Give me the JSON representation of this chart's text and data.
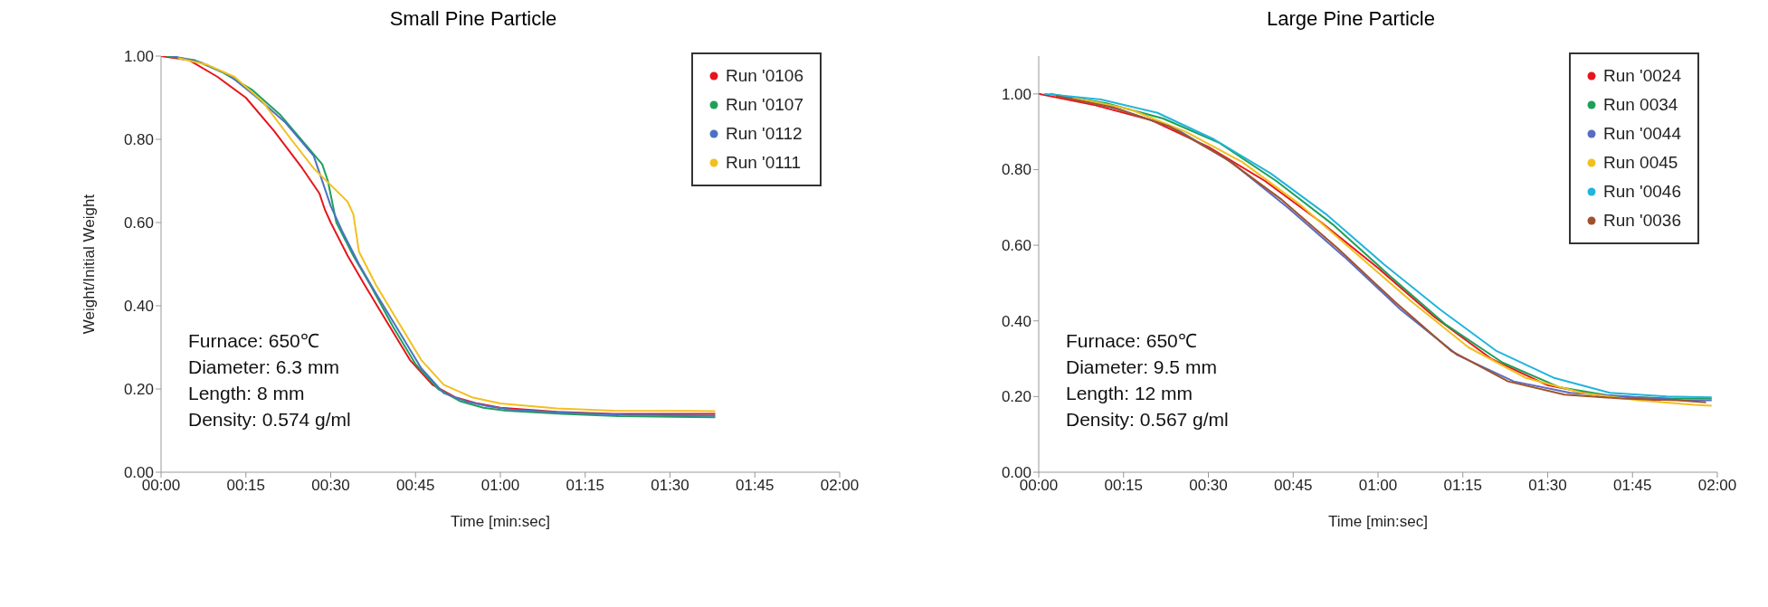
{
  "chart_data": [
    {
      "type": "line",
      "title": "Small Pine Particle",
      "xlabel": "Time [min:sec]",
      "ylabel": "Weight/Initial Weight",
      "legend": "top right",
      "xlim": [
        0,
        120
      ],
      "xticks": [
        {
          "value": 0,
          "label": "00:00"
        },
        {
          "value": 15,
          "label": "00:15"
        },
        {
          "value": 30,
          "label": "00:30"
        },
        {
          "value": 45,
          "label": "00:45"
        },
        {
          "value": 60,
          "label": "01:00"
        },
        {
          "value": 75,
          "label": "01:15"
        },
        {
          "value": 90,
          "label": "01:30"
        },
        {
          "value": 105,
          "label": "01:45"
        },
        {
          "value": 120,
          "label": "02:00"
        }
      ],
      "ylim": [
        0,
        1
      ],
      "yticks": [
        {
          "value": 0,
          "label": "0.00"
        },
        {
          "value": 0.2,
          "label": "0.20"
        },
        {
          "value": 0.4,
          "label": "0.40"
        },
        {
          "value": 0.6,
          "label": "0.60"
        },
        {
          "value": 0.8,
          "label": "0.80"
        },
        {
          "value": 1,
          "label": "1.00"
        }
      ],
      "series": [
        {
          "name": "Run '0106",
          "color": "#e8141c",
          "x": [
            0,
            5,
            10,
            15,
            20,
            25,
            28,
            29,
            30,
            33,
            36,
            40,
            44,
            48,
            52,
            56,
            60,
            70,
            80,
            98
          ],
          "values": [
            1,
            0.99,
            0.95,
            0.9,
            0.82,
            0.73,
            0.67,
            0.63,
            0.6,
            0.52,
            0.45,
            0.36,
            0.27,
            0.21,
            0.18,
            0.165,
            0.155,
            0.145,
            0.14,
            0.14
          ]
        },
        {
          "name": "Run '0107",
          "color": "#1fa05a",
          "x": [
            1,
            6,
            11,
            16,
            21,
            26,
            28.5,
            29.5,
            31,
            34,
            37,
            41,
            45,
            49,
            53,
            57,
            61,
            71,
            81,
            98
          ],
          "values": [
            1,
            0.99,
            0.96,
            0.92,
            0.86,
            0.78,
            0.74,
            0.7,
            0.6,
            0.52,
            0.45,
            0.35,
            0.26,
            0.2,
            0.17,
            0.155,
            0.148,
            0.14,
            0.135,
            0.132
          ]
        },
        {
          "name": "Run '0112",
          "color": "#4a72c4",
          "x": [
            2,
            7,
            12,
            17,
            22,
            27,
            30,
            32,
            35,
            38,
            42,
            46,
            50,
            54,
            58,
            62,
            72,
            82,
            98
          ],
          "values": [
            1,
            0.985,
            0.955,
            0.9,
            0.84,
            0.76,
            0.64,
            0.58,
            0.5,
            0.43,
            0.34,
            0.25,
            0.19,
            0.17,
            0.158,
            0.15,
            0.143,
            0.138,
            0.136
          ]
        },
        {
          "name": "Run '0111",
          "color": "#f2c01e",
          "x": [
            3,
            8,
            13,
            18,
            23,
            27,
            30,
            33,
            34,
            35,
            38,
            42,
            46,
            50,
            55,
            60,
            70,
            80,
            98
          ],
          "values": [
            0.995,
            0.98,
            0.95,
            0.89,
            0.8,
            0.73,
            0.69,
            0.65,
            0.62,
            0.53,
            0.45,
            0.36,
            0.27,
            0.21,
            0.18,
            0.165,
            0.153,
            0.148,
            0.147
          ]
        }
      ],
      "annotations": [
        "Furnace: 650℃",
        "Diameter: 6.3 mm",
        "Length: 8 mm",
        "Density: 0.574 g/ml"
      ]
    },
    {
      "type": "line",
      "title": "Large Pine Particle",
      "xlabel": "Time [min:sec]",
      "legend": "top right",
      "xlim": [
        0,
        120
      ],
      "xticks": [
        {
          "value": 0,
          "label": "00:00"
        },
        {
          "value": 15,
          "label": "00:15"
        },
        {
          "value": 30,
          "label": "00:30"
        },
        {
          "value": 45,
          "label": "00:45"
        },
        {
          "value": 60,
          "label": "01:00"
        },
        {
          "value": 75,
          "label": "01:15"
        },
        {
          "value": 90,
          "label": "01:30"
        },
        {
          "value": 105,
          "label": "01:45"
        },
        {
          "value": 120,
          "label": "02:00"
        }
      ],
      "ylim": [
        0,
        1.1
      ],
      "yticks": [
        {
          "value": 0,
          "label": "0.00"
        },
        {
          "value": 0.2,
          "label": "0.20"
        },
        {
          "value": 0.4,
          "label": "0.40"
        },
        {
          "value": 0.6,
          "label": "0.60"
        },
        {
          "value": 0.8,
          "label": "0.80"
        },
        {
          "value": 1,
          "label": "1.00"
        }
      ],
      "series": [
        {
          "name": "Run '0024",
          "color": "#e8141c",
          "x": [
            0,
            10,
            20,
            30,
            40,
            50,
            60,
            70,
            80,
            90,
            100,
            110
          ],
          "values": [
            1,
            0.97,
            0.93,
            0.86,
            0.77,
            0.66,
            0.54,
            0.41,
            0.3,
            0.23,
            0.2,
            0.19
          ]
        },
        {
          "name": "Run 0034",
          "color": "#1fa05a",
          "x": [
            2,
            12,
            22,
            32,
            42,
            52,
            62,
            72,
            82,
            92,
            102,
            112,
            119
          ],
          "values": [
            1,
            0.975,
            0.935,
            0.87,
            0.77,
            0.655,
            0.52,
            0.39,
            0.29,
            0.225,
            0.2,
            0.195,
            0.195
          ]
        },
        {
          "name": "Run '0044",
          "color": "#5a6cc0",
          "x": [
            4,
            14,
            24,
            34,
            44,
            54,
            64,
            74,
            84,
            94,
            104,
            114,
            119
          ],
          "values": [
            0.995,
            0.96,
            0.91,
            0.82,
            0.7,
            0.57,
            0.43,
            0.31,
            0.24,
            0.21,
            0.2,
            0.19,
            0.19
          ]
        },
        {
          "name": "Run 0045",
          "color": "#f2c01e",
          "x": [
            6,
            16,
            26,
            36,
            46,
            56,
            66,
            76,
            86,
            96,
            106,
            116,
            119
          ],
          "values": [
            0.99,
            0.96,
            0.9,
            0.82,
            0.71,
            0.58,
            0.45,
            0.33,
            0.25,
            0.21,
            0.19,
            0.178,
            0.176
          ]
        },
        {
          "name": "Run '0046",
          "color": "#22b4dc",
          "x": [
            1,
            11,
            21,
            31,
            41,
            51,
            61,
            71,
            81,
            91,
            101,
            111,
            119
          ],
          "values": [
            1,
            0.985,
            0.95,
            0.88,
            0.79,
            0.68,
            0.55,
            0.43,
            0.32,
            0.25,
            0.21,
            0.2,
            0.198
          ]
        },
        {
          "name": "Run '0036",
          "color": "#a0522d",
          "x": [
            3,
            13,
            23,
            33,
            43,
            53,
            63,
            73,
            83,
            93,
            103,
            113,
            118
          ],
          "values": [
            0.995,
            0.965,
            0.915,
            0.83,
            0.72,
            0.59,
            0.45,
            0.32,
            0.24,
            0.205,
            0.195,
            0.19,
            0.185
          ]
        }
      ],
      "annotations": [
        "Furnace: 650℃",
        "Diameter: 9.5 mm",
        "Length: 12 mm",
        "Density: 0.567 g/ml"
      ]
    }
  ]
}
